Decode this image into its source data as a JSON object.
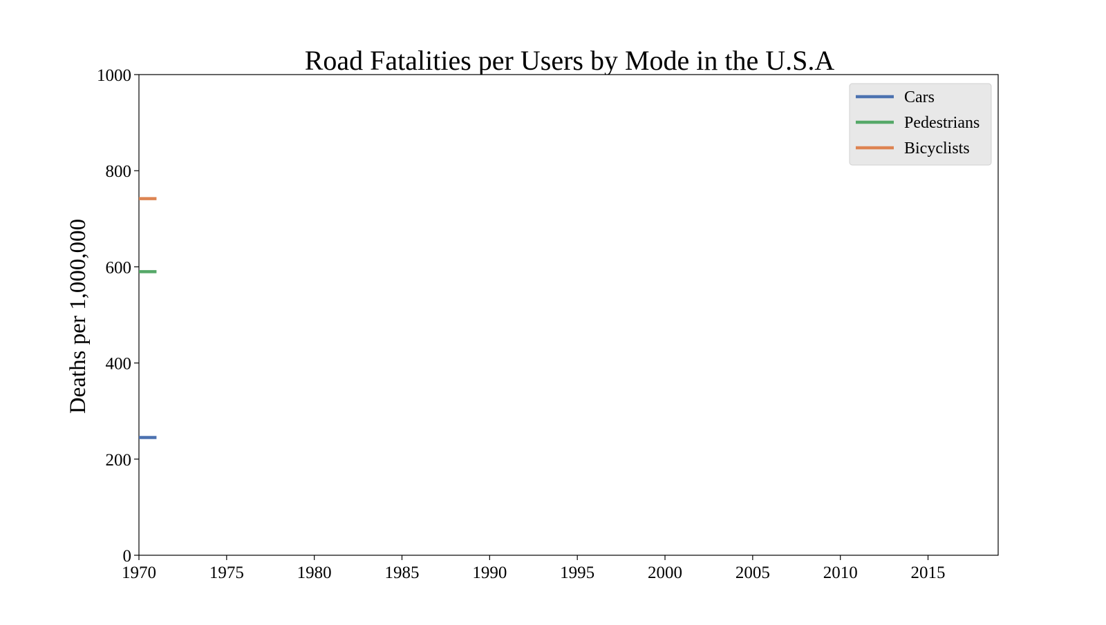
{
  "chart_data": {
    "type": "line",
    "title": "Road Fatalities per Users by Mode in the U.S.A",
    "xlabel": "",
    "ylabel": "Deaths per 1,000,000",
    "xlim": [
      1970,
      2019
    ],
    "ylim": [
      0,
      1000
    ],
    "x_ticks": [
      1970,
      1975,
      1980,
      1985,
      1990,
      1995,
      2000,
      2005,
      2010,
      2015
    ],
    "y_ticks": [
      0,
      200,
      400,
      600,
      800,
      1000
    ],
    "grid": false,
    "legend_position": "top-right",
    "series": [
      {
        "name": "Cars",
        "color": "#4c72b0",
        "x": [
          1970,
          1971
        ],
        "values": [
          245,
          245
        ]
      },
      {
        "name": "Pedestrians",
        "color": "#55a868",
        "x": [
          1970,
          1971
        ],
        "values": [
          590,
          590
        ]
      },
      {
        "name": "Bicyclists",
        "color": "#dd8452",
        "x": [
          1970,
          1971
        ],
        "values": [
          742,
          742
        ]
      }
    ]
  }
}
